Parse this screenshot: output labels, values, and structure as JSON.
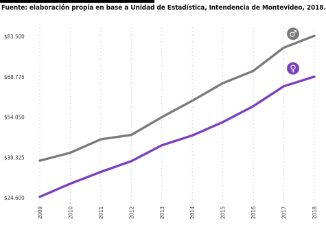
{
  "source_text": "Fuente: elaboración propia en base a Unidad de Estadística, Intendencia de Montevideo, 2018.",
  "colors": {
    "male": "#7a7a7a",
    "female": "#7b3fbf",
    "grid": "#d8d8d8",
    "rule": "#000000"
  },
  "legend": {
    "male_symbol": "♂",
    "female_symbol": "♀"
  },
  "chart_data": {
    "type": "line",
    "title": "",
    "xlabel": "",
    "ylabel": "",
    "x": [
      "2009",
      "2010",
      "2011",
      "2012",
      "2013",
      "2014",
      "2015",
      "2016",
      "2017",
      "2018"
    ],
    "ylim": [
      24600,
      83500
    ],
    "y_ticks": [
      24600,
      39325,
      54050,
      68775,
      83500
    ],
    "y_tick_labels": [
      "$24.600",
      "$39.325",
      "$54.050",
      "$68.775",
      "$83.500"
    ],
    "grid": true,
    "legend_placement": "right, next to line ends",
    "series": [
      {
        "key": "male",
        "icon": "male-symbol-icon",
        "values": [
          38100,
          41000,
          45900,
          47500,
          54000,
          60000,
          66400,
          70900,
          79400,
          83700
        ]
      },
      {
        "key": "female",
        "icon": "female-symbol-icon",
        "values": [
          24900,
          29700,
          34000,
          37900,
          43700,
          47300,
          52200,
          58000,
          65300,
          68800
        ]
      }
    ]
  }
}
